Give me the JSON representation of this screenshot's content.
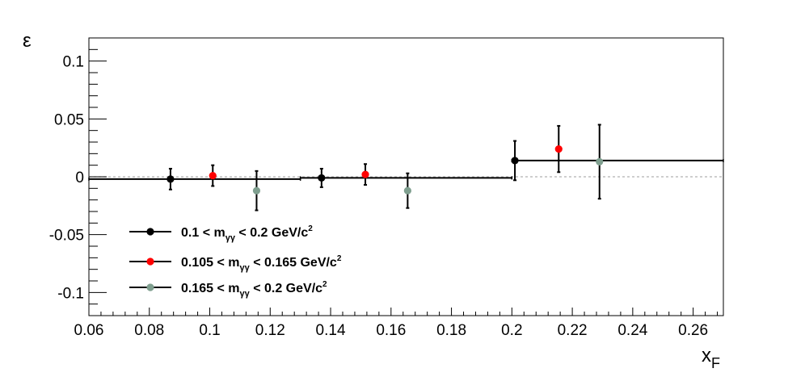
{
  "chart_data": {
    "type": "scatter",
    "title": "",
    "xlabel_main": "x",
    "xlabel_sub": "F",
    "ylabel": "ε",
    "xlim": [
      0.06,
      0.27
    ],
    "ylim": [
      -0.12,
      0.12
    ],
    "x_ticks": [
      0.06,
      0.08,
      0.1,
      0.12,
      0.14,
      0.16,
      0.18,
      0.2,
      0.22,
      0.24,
      0.26
    ],
    "x_tick_labels": [
      "0.06",
      "0.08",
      "0.1",
      "0.12",
      "0.14",
      "0.16",
      "0.18",
      "0.2",
      "0.22",
      "0.24",
      "0.26"
    ],
    "y_ticks": [
      -0.1,
      -0.05,
      0,
      0.05,
      0.1
    ],
    "y_tick_labels": [
      "-0.1",
      "-0.05",
      "0",
      "0.05",
      "0.1"
    ],
    "reference_line": 0,
    "series": [
      {
        "color": "#000000",
        "legend": {
          "pre": "0.1 < m",
          "sub": "γγ",
          "post": " < 0.2 GeV/c",
          "sup": "2"
        },
        "points": [
          {
            "x": 0.087,
            "y": -0.002,
            "xerr": [
              0.06,
              0.13
            ],
            "yerr": 0.009
          },
          {
            "x": 0.137,
            "y": -0.001,
            "xerr": [
              0.13,
              0.2
            ],
            "yerr": 0.008
          },
          {
            "x": 0.201,
            "y": 0.014,
            "xerr": [
              0.2,
              0.27
            ],
            "yerr": 0.017
          }
        ]
      },
      {
        "color": "#ff0000",
        "legend": {
          "pre": "0.105 < m",
          "sub": "γγ",
          "post": " < 0.165 GeV/c",
          "sup": "2"
        },
        "points": [
          {
            "x": 0.101,
            "y": 0.001,
            "yerr": 0.009
          },
          {
            "x": 0.1515,
            "y": 0.002,
            "yerr": 0.009
          },
          {
            "x": 0.2155,
            "y": 0.024,
            "yerr": 0.02
          }
        ]
      },
      {
        "color": "#7f9f8f",
        "legend": {
          "pre": "0.165 < m",
          "sub": "γγ",
          "post": " < 0.2 GeV/c",
          "sup": "2"
        },
        "points": [
          {
            "x": 0.1155,
            "y": -0.012,
            "yerr": 0.017
          },
          {
            "x": 0.1655,
            "y": -0.012,
            "yerr": 0.015
          },
          {
            "x": 0.229,
            "y": 0.013,
            "yerr": 0.032
          }
        ]
      }
    ]
  }
}
